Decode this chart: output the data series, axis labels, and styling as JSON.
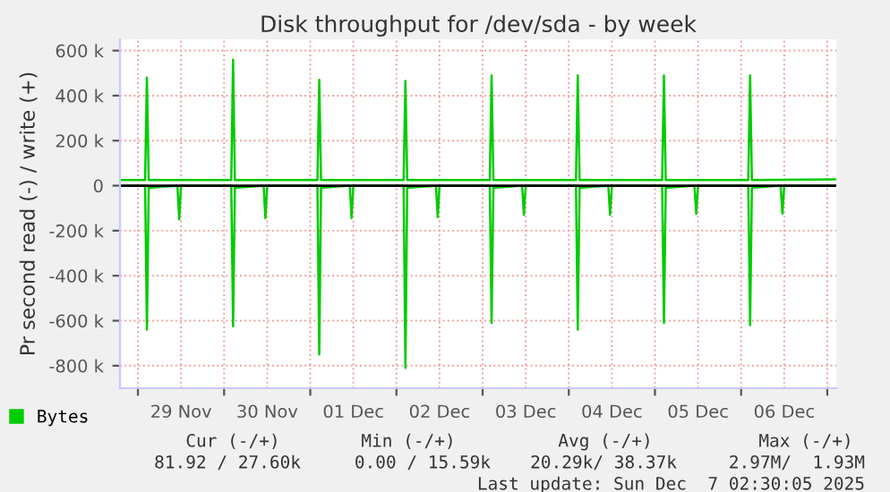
{
  "chart_data": {
    "type": "line",
    "title": "Disk throughput for /dev/sda - by week",
    "ylabel": "Pr second read (-) / write (+)",
    "xlim": [
      "2025-11-28T19:00",
      "2025-12-07T02:30"
    ],
    "xticks": [
      {
        "value": "2025-11-29T00:00",
        "label": null
      },
      {
        "value": "2025-11-29T12:00",
        "label": "29 Nov"
      },
      {
        "value": "2025-11-30T00:00",
        "label": null
      },
      {
        "value": "2025-11-30T12:00",
        "label": "30 Nov"
      },
      {
        "value": "2025-12-01T00:00",
        "label": null
      },
      {
        "value": "2025-12-01T12:00",
        "label": "01 Dec"
      },
      {
        "value": "2025-12-02T00:00",
        "label": null
      },
      {
        "value": "2025-12-02T12:00",
        "label": "02 Dec"
      },
      {
        "value": "2025-12-03T00:00",
        "label": null
      },
      {
        "value": "2025-12-03T12:00",
        "label": "03 Dec"
      },
      {
        "value": "2025-12-04T00:00",
        "label": null
      },
      {
        "value": "2025-12-04T12:00",
        "label": "04 Dec"
      },
      {
        "value": "2025-12-05T00:00",
        "label": null
      },
      {
        "value": "2025-12-05T12:00",
        "label": "05 Dec"
      },
      {
        "value": "2025-12-06T00:00",
        "label": null
      },
      {
        "value": "2025-12-06T12:00",
        "label": "06 Dec"
      },
      {
        "value": "2025-12-07T00:00",
        "label": null
      }
    ],
    "ylim": [
      -900000,
      650000
    ],
    "yticks": [
      {
        "value": -800000,
        "label": "-800 k"
      },
      {
        "value": -600000,
        "label": "-600 k"
      },
      {
        "value": -400000,
        "label": "-400 k"
      },
      {
        "value": -200000,
        "label": "-200 k"
      },
      0,
      {
        "value": 200000,
        "label": "200 k"
      },
      {
        "value": 400000,
        "label": "400 k"
      },
      {
        "value": 600000,
        "label": "600 k"
      }
    ],
    "grid": true,
    "legend": "bottom left",
    "ref_lines": [
      {
        "axis": "y",
        "value": 0,
        "color": "#000000"
      }
    ],
    "series": [
      {
        "name": "Bytes",
        "color": "#00cc00",
        "x": [
          "2025-11-28T19:00",
          "2025-11-29T02:00",
          "2025-11-29T02:30",
          "2025-11-29T03:00",
          "2025-11-30T02:00",
          "2025-11-30T02:30",
          "2025-11-30T03:00",
          "2025-12-01T02:00",
          "2025-12-01T02:30",
          "2025-12-01T03:00",
          "2025-12-02T02:00",
          "2025-12-02T02:30",
          "2025-12-02T03:00",
          "2025-12-03T02:00",
          "2025-12-03T02:30",
          "2025-12-03T03:00",
          "2025-12-04T02:00",
          "2025-12-04T02:30",
          "2025-12-04T03:00",
          "2025-12-05T02:00",
          "2025-12-05T02:30",
          "2025-12-05T03:00",
          "2025-12-06T02:00",
          "2025-12-06T02:30",
          "2025-12-06T03:00",
          "2025-12-07T02:30"
        ],
        "values": [
          25000,
          25000,
          480000,
          25000,
          25000,
          560000,
          25000,
          25000,
          470000,
          25000,
          25000,
          465000,
          25000,
          25000,
          490000,
          25000,
          25000,
          490000,
          25000,
          25000,
          490000,
          25000,
          25000,
          490000,
          25000,
          27600
        ]
      },
      {
        "color": "#00cc00",
        "x": [
          "2025-11-28T19:00",
          "2025-11-29T02:00",
          "2025-11-29T02:30",
          "2025-11-29T03:00",
          "2025-11-29T11:00",
          "2025-11-29T11:30",
          "2025-11-29T12:00",
          "2025-11-30T02:00",
          "2025-11-30T02:30",
          "2025-11-30T03:00",
          "2025-11-30T11:00",
          "2025-11-30T11:30",
          "2025-11-30T12:00",
          "2025-12-01T02:00",
          "2025-12-01T02:30",
          "2025-12-01T03:00",
          "2025-12-01T11:00",
          "2025-12-01T11:30",
          "2025-12-01T12:00",
          "2025-12-02T02:00",
          "2025-12-02T02:30",
          "2025-12-02T03:00",
          "2025-12-02T11:00",
          "2025-12-02T11:30",
          "2025-12-02T12:00",
          "2025-12-03T02:00",
          "2025-12-03T02:30",
          "2025-12-03T03:00",
          "2025-12-03T11:00",
          "2025-12-03T11:30",
          "2025-12-03T12:00",
          "2025-12-04T02:00",
          "2025-12-04T02:30",
          "2025-12-04T03:00",
          "2025-12-04T11:00",
          "2025-12-04T11:30",
          "2025-12-04T12:00",
          "2025-12-05T02:00",
          "2025-12-05T02:30",
          "2025-12-05T03:00",
          "2025-12-05T11:00",
          "2025-12-05T11:30",
          "2025-12-05T12:00",
          "2025-12-06T02:00",
          "2025-12-06T02:30",
          "2025-12-06T03:00",
          "2025-12-06T11:00",
          "2025-12-06T11:30",
          "2025-12-06T12:00",
          "2025-12-07T02:30"
        ],
        "values": [
          0,
          0,
          -640000,
          -10000,
          0,
          -150000,
          0,
          0,
          -625000,
          -10000,
          0,
          -145000,
          0,
          0,
          -750000,
          -10000,
          0,
          -145000,
          0,
          0,
          -810000,
          -10000,
          0,
          -140000,
          0,
          0,
          -610000,
          -10000,
          0,
          -130000,
          0,
          0,
          -640000,
          -10000,
          0,
          -130000,
          0,
          0,
          -610000,
          -10000,
          0,
          -125000,
          0,
          0,
          -620000,
          -10000,
          0,
          -125000,
          0,
          0
        ]
      }
    ],
    "annotations": [
      "Cur (-/+)",
      "Min (-/+)",
      "Avg (-/+)",
      "Max (-/+)",
      "81.92 / 27.60k",
      "0.00 / 15.59k",
      "20.29k/ 38.37k",
      "2.97M/  1.93M",
      "Last update: Sun Dec  7 02:30:05 2025"
    ]
  }
}
